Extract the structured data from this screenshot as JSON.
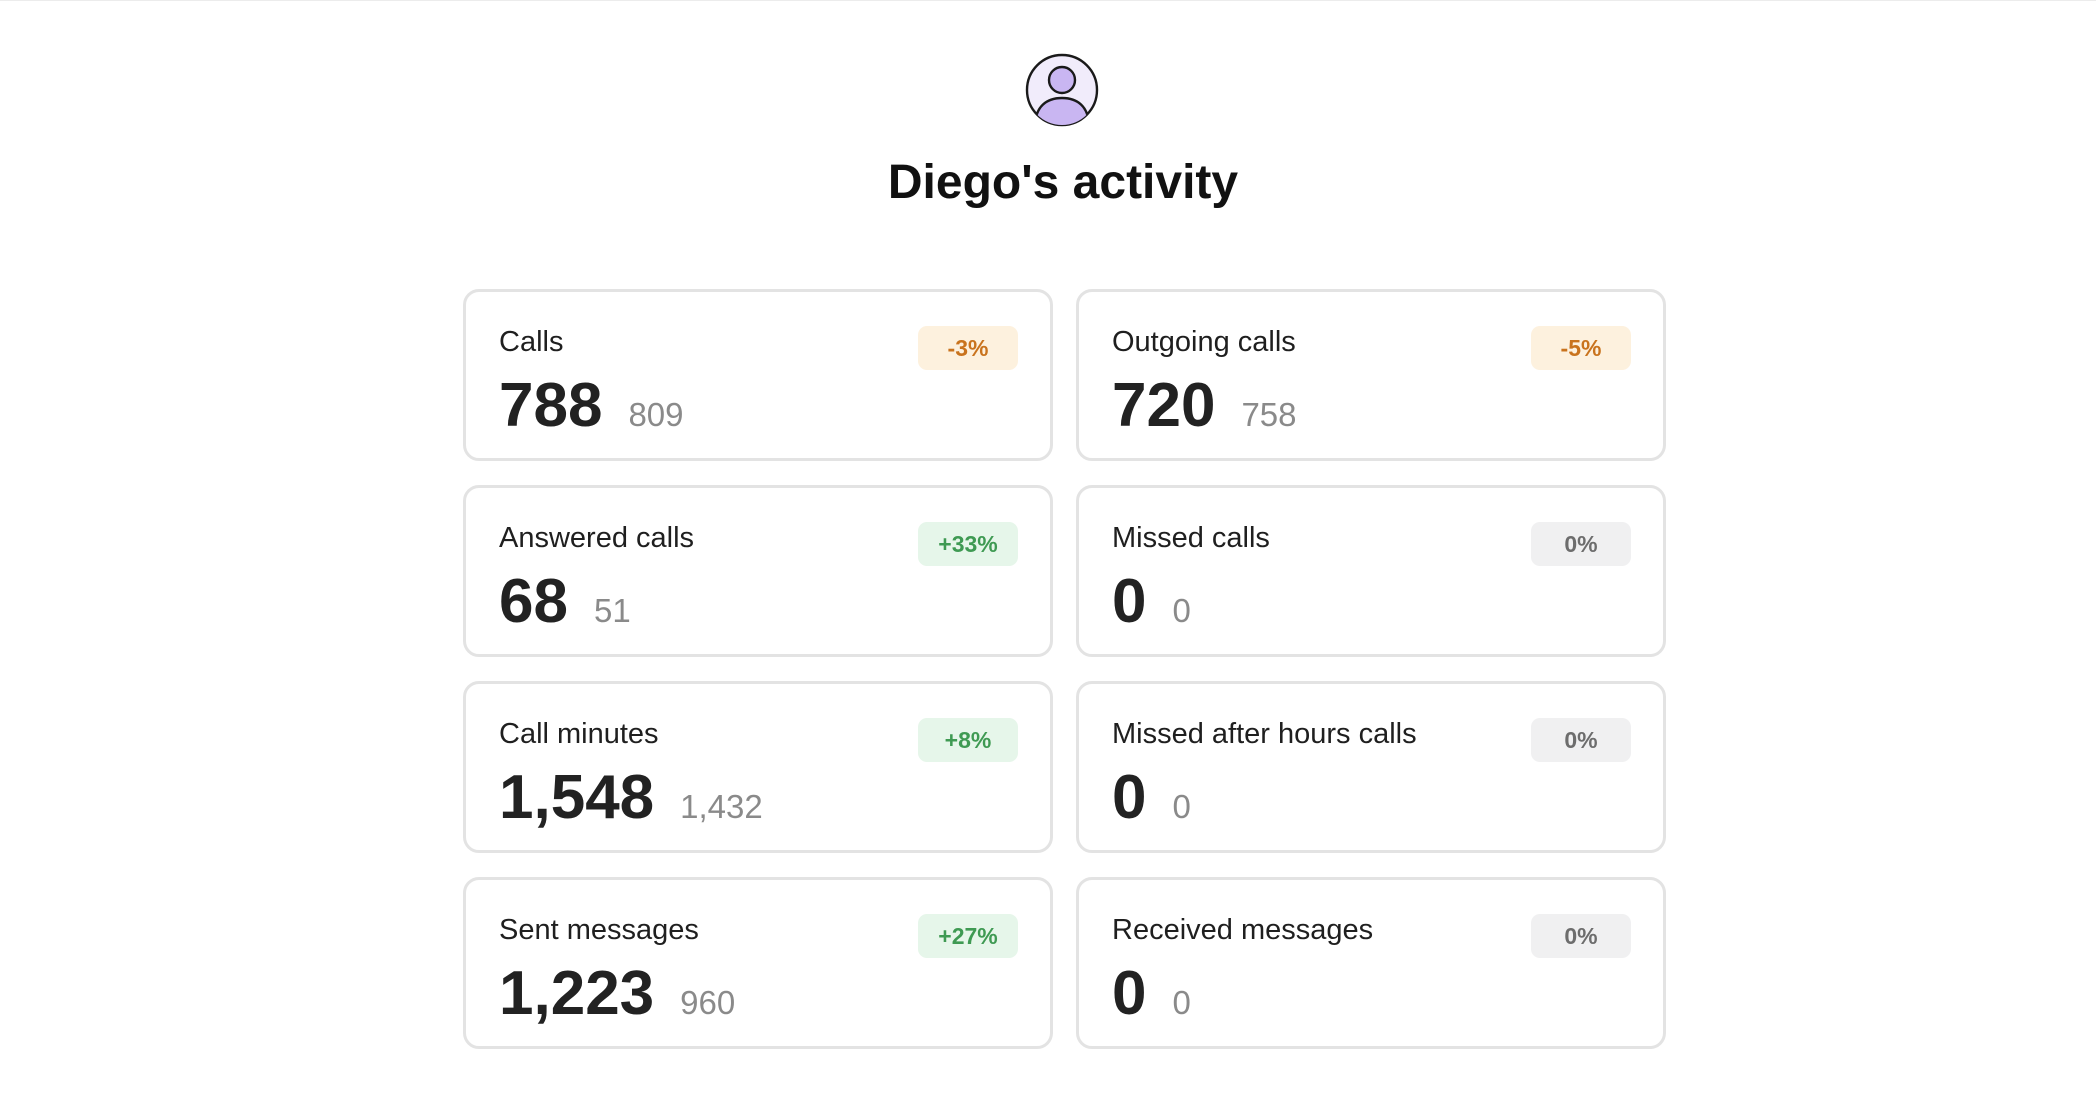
{
  "header": {
    "avatar_icon": "user-avatar-icon",
    "title": "Diego's activity"
  },
  "cards": [
    {
      "id": "calls",
      "label": "Calls",
      "value": "788",
      "previous": "809",
      "change": "-3%",
      "trend": "down"
    },
    {
      "id": "outgoing-calls",
      "label": "Outgoing calls",
      "value": "720",
      "previous": "758",
      "change": "-5%",
      "trend": "down"
    },
    {
      "id": "answered-calls",
      "label": "Answered calls",
      "value": "68",
      "previous": "51",
      "change": "+33%",
      "trend": "up"
    },
    {
      "id": "missed-calls",
      "label": "Missed calls",
      "value": "0",
      "previous": "0",
      "change": "0%",
      "trend": "flat"
    },
    {
      "id": "call-minutes",
      "label": "Call minutes",
      "value": "1,548",
      "previous": "1,432",
      "change": "+8%",
      "trend": "up"
    },
    {
      "id": "missed-after-hours-calls",
      "label": "Missed after hours calls",
      "value": "0",
      "previous": "0",
      "change": "0%",
      "trend": "flat"
    },
    {
      "id": "sent-messages",
      "label": "Sent messages",
      "value": "1,223",
      "previous": "960",
      "change": "+27%",
      "trend": "up"
    },
    {
      "id": "received-messages",
      "label": "Received messages",
      "value": "0",
      "previous": "0",
      "change": "0%",
      "trend": "flat"
    }
  ],
  "colors": {
    "trend_down_bg": "#fdf1de",
    "trend_down_text": "#c9731d",
    "trend_up_bg": "#e6f6ea",
    "trend_up_text": "#3f9a53",
    "trend_flat_bg": "#f0f0f1",
    "trend_flat_text": "#6d6d6d",
    "avatar_fill": "#c9b6f2",
    "avatar_bg": "#f1ecfb"
  }
}
